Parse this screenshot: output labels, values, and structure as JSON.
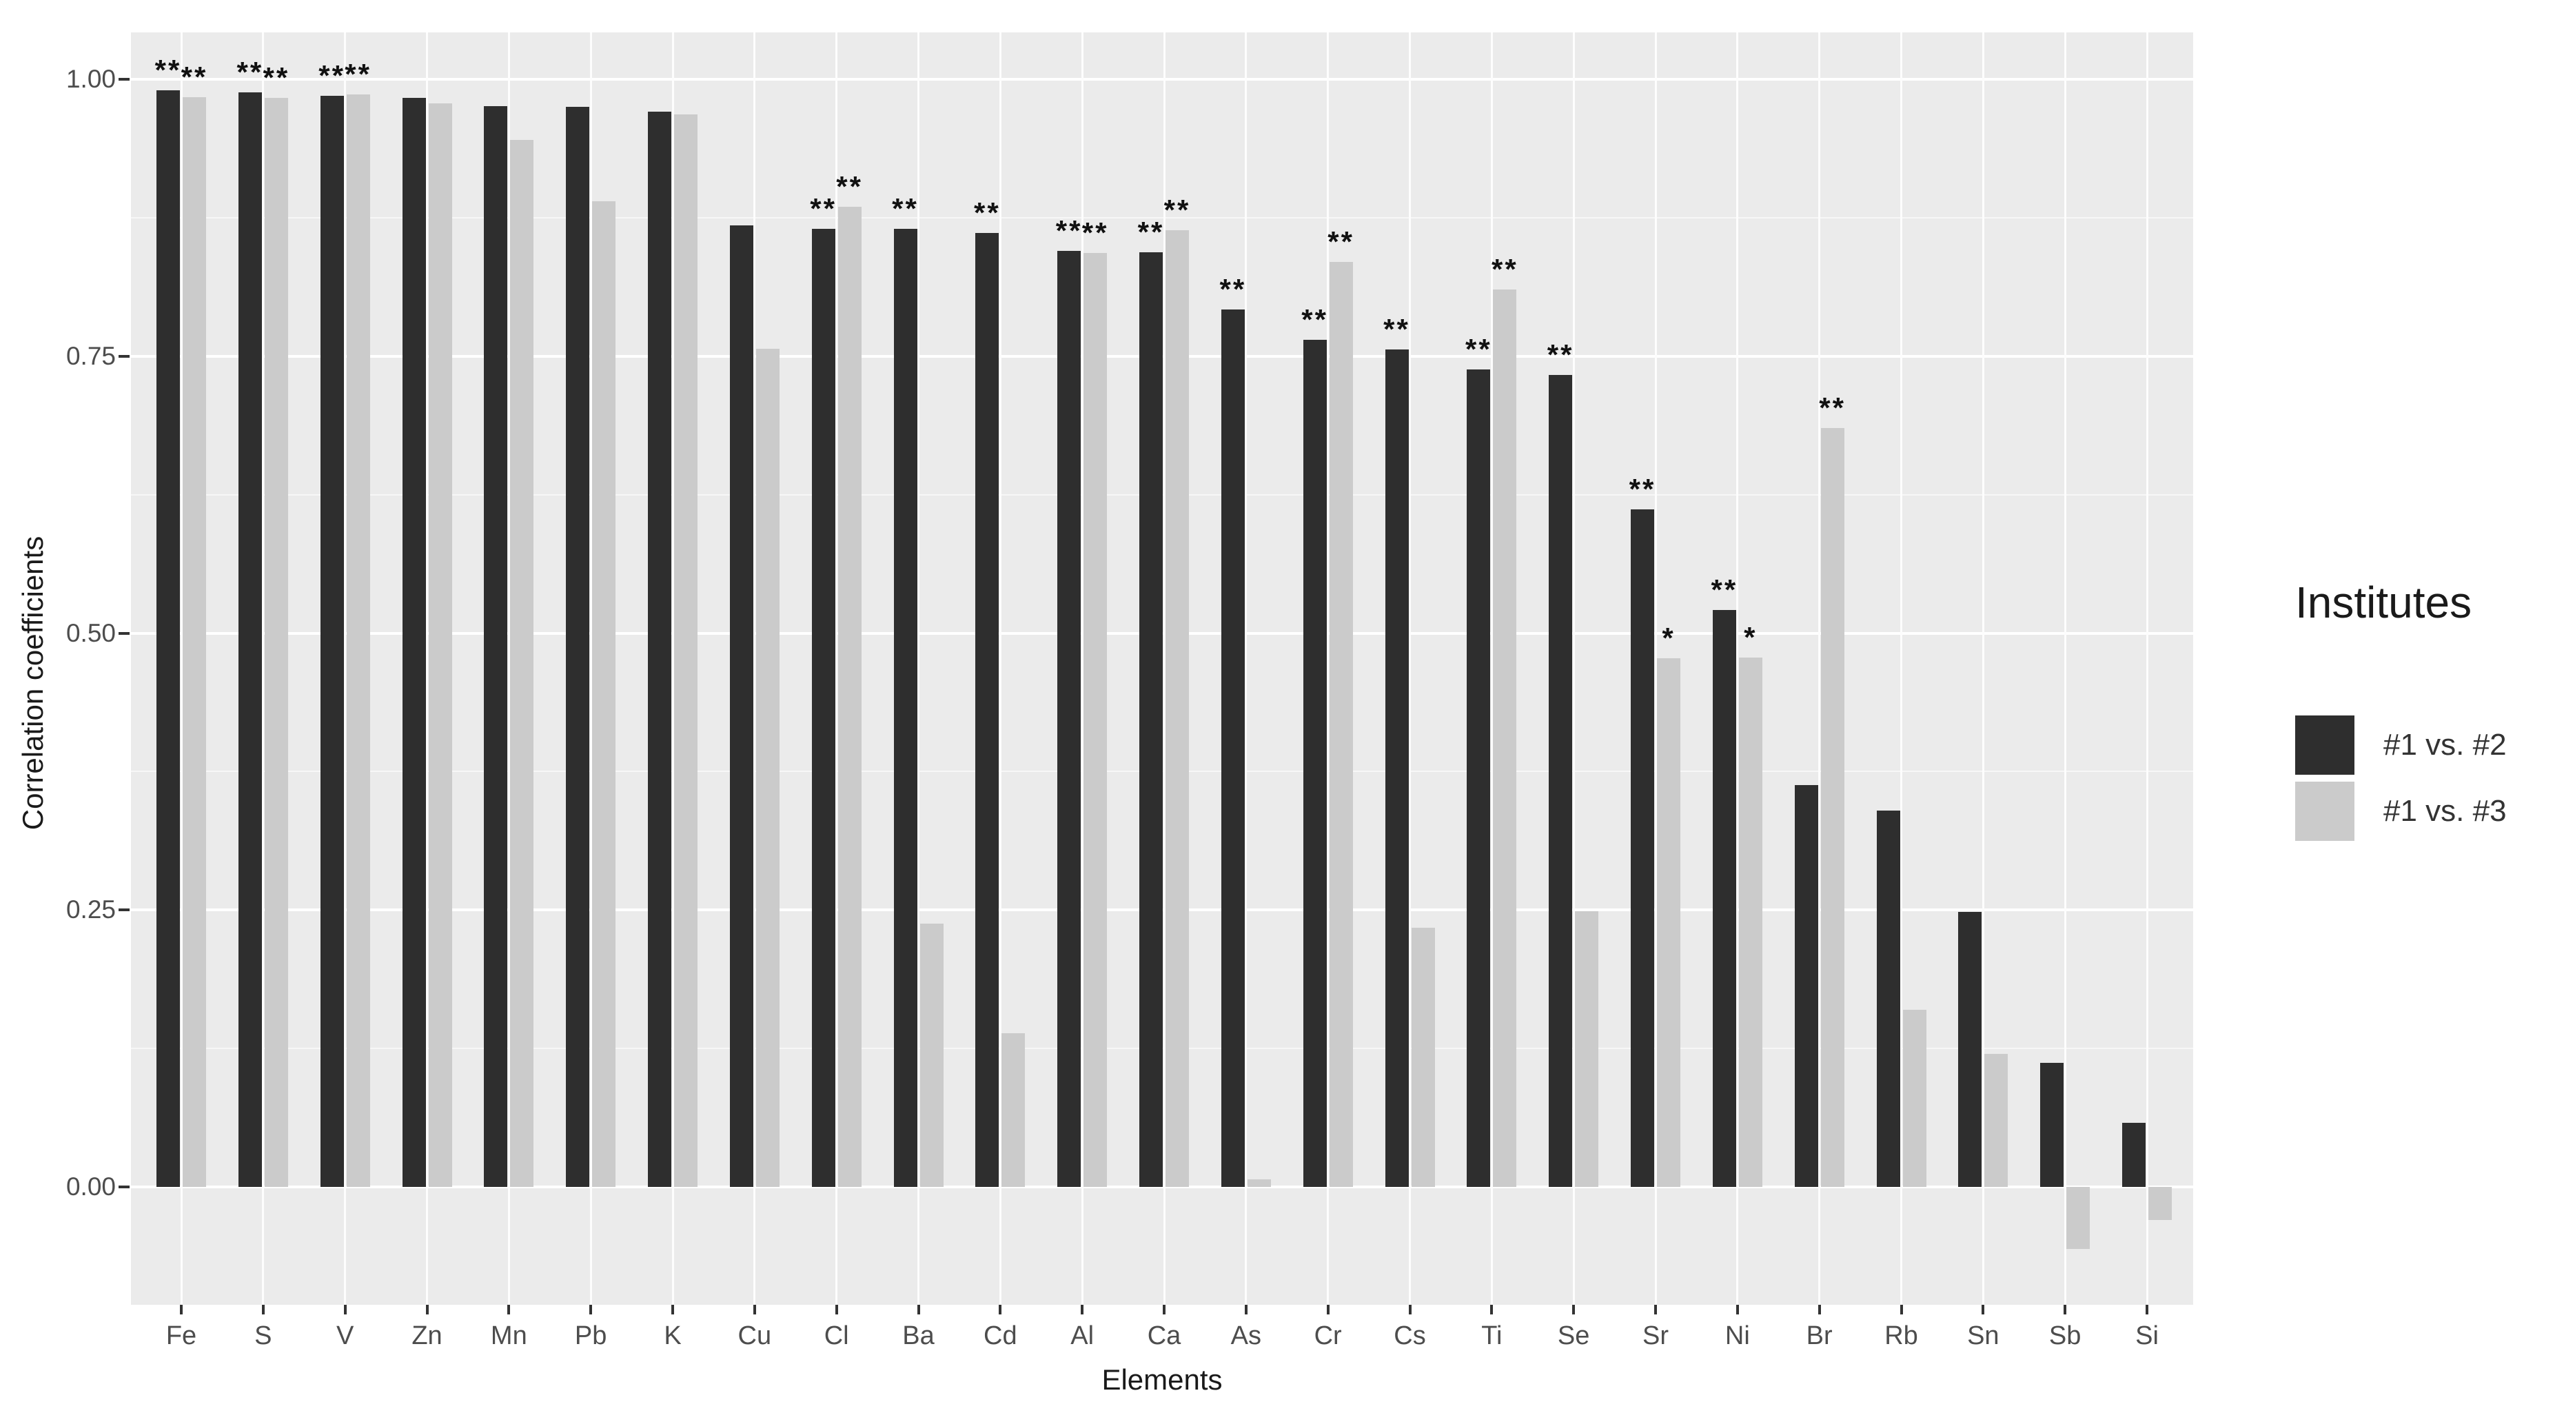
{
  "chart_data": {
    "type": "bar",
    "title": "",
    "xlabel": "Elements",
    "ylabel": "Correlation coefficients",
    "legend_title": "Institutes",
    "legend_position": "right",
    "grid": "on",
    "panel_bg": "#ebebeb",
    "ylim": [
      -0.106,
      1.042
    ],
    "ytick_values": [
      1.0,
      0.75,
      0.5,
      0.25,
      0.0
    ],
    "ytick_labels": [
      "1.00",
      "0.75",
      "0.50",
      "0.25",
      "0.00"
    ],
    "ytick_minor_values": [
      0.875,
      0.625,
      0.375,
      0.125
    ],
    "categories": [
      "Fe",
      "S",
      "V",
      "Zn",
      "Mn",
      "Pb",
      "K",
      "Cu",
      "Cl",
      "Ba",
      "Cd",
      "Al",
      "Ca",
      "As",
      "Cr",
      "Cs",
      "Ti",
      "Se",
      "Sr",
      "Ni",
      "Br",
      "Rb",
      "Sn",
      "Sb",
      "Si"
    ],
    "series": [
      {
        "name": "#1 vs. #2",
        "color": "#2e2e2e",
        "values": [
          0.99,
          0.988,
          0.985,
          0.983,
          0.976,
          0.975,
          0.971,
          0.868,
          0.865,
          0.865,
          0.861,
          0.845,
          0.844,
          0.792,
          0.765,
          0.756,
          0.738,
          0.733,
          0.612,
          0.521,
          0.363,
          0.34,
          0.248,
          0.112,
          0.058
        ],
        "significance": [
          "**",
          "**",
          "**",
          "",
          "",
          "",
          "",
          "",
          "**",
          "**",
          "**",
          "**",
          "**",
          "**",
          "**",
          "**",
          "**",
          "**",
          "**",
          "**",
          "",
          "",
          "",
          "",
          ""
        ]
      },
      {
        "name": "#1 vs. #3",
        "color": "#cbcbcb",
        "values": [
          0.984,
          0.983,
          0.986,
          0.978,
          0.945,
          0.89,
          0.968,
          0.757,
          0.885,
          0.238,
          0.139,
          0.843,
          0.864,
          0.007,
          0.835,
          0.234,
          0.81,
          0.249,
          0.477,
          0.478,
          0.685,
          0.16,
          0.12,
          -0.056,
          -0.03
        ],
        "significance": [
          "**",
          "**",
          "**",
          "",
          "",
          "",
          "",
          "",
          "**",
          "",
          "",
          "**",
          "**",
          "",
          "**",
          "",
          "**",
          "",
          "*",
          "*",
          "**",
          "",
          "",
          "",
          ""
        ]
      }
    ]
  }
}
